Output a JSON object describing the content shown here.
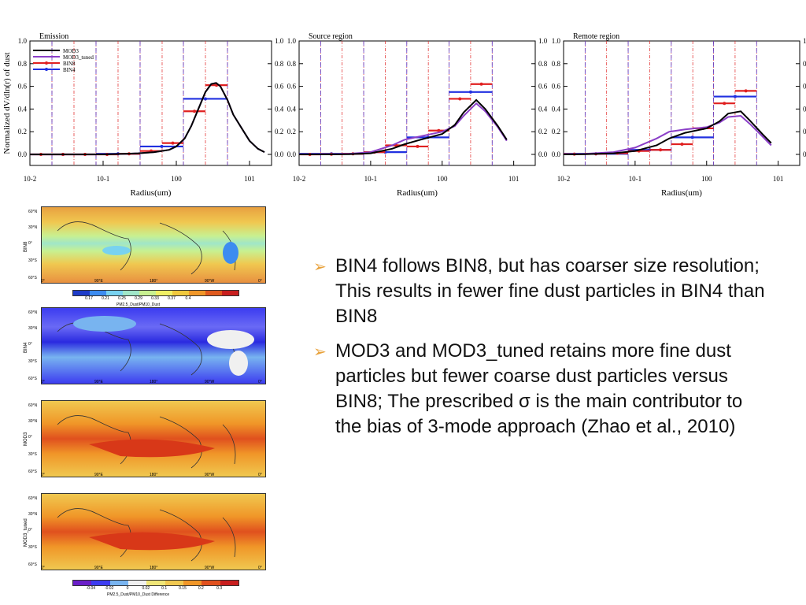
{
  "chart_data": [
    {
      "type": "line",
      "title": "Emission",
      "ylabel": "Normalized dV/dln(r) of dust",
      "xlabel": "Radius(um)",
      "x_scale": "log",
      "xlim": [
        0.01,
        20
      ],
      "ylim": [
        0,
        1.0
      ],
      "yticks": [
        "0.0",
        "0.2",
        "0.4",
        "0.6",
        "0.8",
        "1.0"
      ],
      "xticks": [
        "10-2",
        "10-1",
        "100",
        "101"
      ],
      "legend": [
        "MOD3",
        "MOD3_tuned",
        "BIN8",
        "BIN4"
      ],
      "legend_position": "top-left",
      "series": [
        {
          "name": "MOD3",
          "color": "#000000",
          "x": [
            0.01,
            0.05,
            0.1,
            0.2,
            0.3,
            0.5,
            0.8,
            1.0,
            1.3,
            1.6,
            2.0,
            2.5,
            3.0,
            3.5,
            4.0,
            5.0,
            6.0,
            8.0,
            10.0,
            13.0,
            16.0
          ],
          "y": [
            0,
            0,
            0,
            0.005,
            0.01,
            0.02,
            0.04,
            0.07,
            0.14,
            0.25,
            0.4,
            0.55,
            0.62,
            0.63,
            0.6,
            0.48,
            0.35,
            0.22,
            0.12,
            0.05,
            0.02
          ]
        },
        {
          "name": "MOD3_tuned",
          "color": "#8b3fc8",
          "x": [
            0.01,
            0.05,
            0.1,
            0.2,
            0.3,
            0.5,
            0.8,
            1.0,
            1.3,
            1.6,
            2.0,
            2.5,
            3.0,
            3.5,
            4.0,
            5.0,
            6.0,
            8.0,
            10.0,
            13.0,
            16.0
          ],
          "y": [
            0,
            0,
            0,
            0.005,
            0.01,
            0.02,
            0.04,
            0.07,
            0.14,
            0.25,
            0.4,
            0.55,
            0.62,
            0.63,
            0.6,
            0.48,
            0.35,
            0.22,
            0.12,
            0.05,
            0.02
          ]
        }
      ],
      "bin8": [
        [
          0.01,
          0.02,
          0
        ],
        [
          0.02,
          0.04,
          0
        ],
        [
          0.04,
          0.08,
          0
        ],
        [
          0.08,
          0.16,
          0
        ],
        [
          0.16,
          0.32,
          0.005
        ],
        [
          0.32,
          0.64,
          0.03
        ],
        [
          0.64,
          1.25,
          0.1
        ],
        [
          1.25,
          2.5,
          0.38
        ],
        [
          2.5,
          5.0,
          0.61
        ]
      ],
      "bin4": [
        [
          0.01,
          0.08,
          0
        ],
        [
          0.08,
          0.32,
          0.005
        ],
        [
          0.32,
          1.25,
          0.07
        ],
        [
          1.25,
          5.0,
          0.49
        ]
      ]
    },
    {
      "type": "line",
      "title": "Source region",
      "xlabel": "Radius(um)",
      "x_scale": "log",
      "xlim": [
        0.01,
        20
      ],
      "ylim": [
        0,
        1.0
      ],
      "yticks": [
        "0.0",
        "0.2",
        "0.4",
        "0.6",
        "0.8",
        "1.0"
      ],
      "xticks": [
        "10-2",
        "10-1",
        "100",
        "101"
      ],
      "series": [
        {
          "name": "MOD3",
          "color": "#000000",
          "x": [
            0.01,
            0.02,
            0.05,
            0.1,
            0.2,
            0.3,
            0.5,
            1.0,
            1.5,
            2.0,
            3.0,
            4.0,
            6.0,
            8.0
          ],
          "y": [
            0,
            0,
            0.002,
            0.01,
            0.05,
            0.09,
            0.13,
            0.18,
            0.26,
            0.37,
            0.48,
            0.4,
            0.25,
            0.13
          ]
        },
        {
          "name": "MOD3_tuned",
          "color": "#8b3fc8",
          "x": [
            0.01,
            0.02,
            0.05,
            0.1,
            0.2,
            0.3,
            0.5,
            1.0,
            1.5,
            2.0,
            3.0,
            4.0,
            6.0,
            8.0
          ],
          "y": [
            0,
            0.001,
            0.005,
            0.02,
            0.08,
            0.13,
            0.16,
            0.2,
            0.25,
            0.34,
            0.45,
            0.38,
            0.24,
            0.12
          ]
        }
      ],
      "bin8": [
        [
          0.01,
          0.02,
          0
        ],
        [
          0.02,
          0.04,
          0.002
        ],
        [
          0.04,
          0.08,
          0.005
        ],
        [
          0.08,
          0.16,
          0.02
        ],
        [
          0.16,
          0.32,
          0.08
        ],
        [
          0.32,
          0.64,
          0.07
        ],
        [
          0.64,
          1.25,
          0.21
        ],
        [
          1.25,
          2.5,
          0.49
        ],
        [
          2.5,
          5.0,
          0.62
        ]
      ],
      "bin4": [
        [
          0.01,
          0.08,
          0.005
        ],
        [
          0.08,
          0.32,
          0.02
        ],
        [
          0.32,
          1.25,
          0.15
        ],
        [
          1.25,
          5.0,
          0.55
        ]
      ]
    },
    {
      "type": "line",
      "title": "Remote region",
      "xlabel": "Radius(um)",
      "x_scale": "log",
      "xlim": [
        0.01,
        20
      ],
      "ylim": [
        0,
        1.0
      ],
      "yticks": [
        "0.0",
        "0.2",
        "0.4",
        "0.6",
        "0.8",
        "1.0"
      ],
      "xticks": [
        "10-2",
        "10-1",
        "100",
        "101"
      ],
      "series": [
        {
          "name": "MOD3",
          "color": "#000000",
          "x": [
            0.01,
            0.02,
            0.05,
            0.1,
            0.2,
            0.3,
            0.5,
            1.0,
            1.5,
            2.0,
            3.0,
            4.0,
            6.0,
            8.0
          ],
          "y": [
            0,
            0.002,
            0.01,
            0.03,
            0.08,
            0.14,
            0.19,
            0.23,
            0.29,
            0.36,
            0.38,
            0.3,
            0.18,
            0.1
          ]
        },
        {
          "name": "MOD3_tuned",
          "color": "#8b3fc8",
          "x": [
            0.01,
            0.02,
            0.05,
            0.1,
            0.2,
            0.3,
            0.5,
            1.0,
            1.5,
            2.0,
            3.0,
            4.0,
            6.0,
            8.0
          ],
          "y": [
            0,
            0.005,
            0.02,
            0.06,
            0.14,
            0.2,
            0.22,
            0.24,
            0.28,
            0.33,
            0.34,
            0.27,
            0.16,
            0.08
          ]
        }
      ],
      "bin8": [
        [
          0.01,
          0.02,
          0.003
        ],
        [
          0.02,
          0.04,
          0.005
        ],
        [
          0.04,
          0.08,
          0.01
        ],
        [
          0.08,
          0.16,
          0.03
        ],
        [
          0.16,
          0.32,
          0.04
        ],
        [
          0.32,
          0.64,
          0.09
        ],
        [
          0.64,
          1.25,
          0.23
        ],
        [
          1.25,
          2.5,
          0.45
        ],
        [
          2.5,
          5.0,
          0.56
        ]
      ],
      "bin4": [
        [
          0.01,
          0.08,
          0.005
        ],
        [
          0.08,
          0.32,
          0.04
        ],
        [
          0.32,
          1.25,
          0.15
        ],
        [
          1.25,
          5.0,
          0.51
        ]
      ]
    }
  ],
  "maps": {
    "lat_labels": [
      "60°N",
      "30°N",
      "0°",
      "30°S",
      "60°S"
    ],
    "lon_labels": [
      "0°",
      "90°E",
      "180°",
      "90°W",
      "0°"
    ],
    "rows": [
      {
        "label": "BIN8"
      },
      {
        "label": "BIN4"
      },
      {
        "label": "MOD3"
      },
      {
        "label": "MOD3_tuned"
      }
    ],
    "colorbar1": {
      "ticks": [
        "0.17",
        "0.21",
        "0.25",
        "0.29",
        "0.33",
        "0.37",
        "0.4"
      ],
      "title": "PM2.5_Dust/PM10_Dust",
      "colors": [
        "#1e3cc8",
        "#3c8cf0",
        "#78d2f0",
        "#a0e6c8",
        "#c8f090",
        "#f0f064",
        "#f0c83c",
        "#f09628",
        "#e05a1e",
        "#c81e1e"
      ]
    },
    "colorbar2": {
      "ticks": [
        "-0.04",
        "-0.02",
        "0",
        "0.02",
        "0.1",
        "0.15",
        "0.2",
        "0.3"
      ],
      "title": "PM2.5_Dust/PM10_Dust Difference",
      "colors": [
        "#6a1ec8",
        "#3c3cf0",
        "#78b4f0",
        "#f0f0f0",
        "#f0e678",
        "#f0c850",
        "#f09628",
        "#e0501e",
        "#c81e1e"
      ]
    }
  },
  "bullets": [
    "BIN4 follows BIN8, but has coarser size resolution; This results in fewer fine dust particles in BIN4 than BIN8",
    "MOD3 and MOD3_tuned retains more fine dust particles but fewer coarse dust particles versus BIN8; The prescribed σ is the main contributor to the bias of 3-mode approach (Zhao et al., 2010)"
  ],
  "colors": {
    "bin8": "#e02020",
    "bin4": "#2030e0",
    "mod3": "#000000",
    "mod3_tuned": "#8b3fc8",
    "arrow": "#e8a13a"
  }
}
